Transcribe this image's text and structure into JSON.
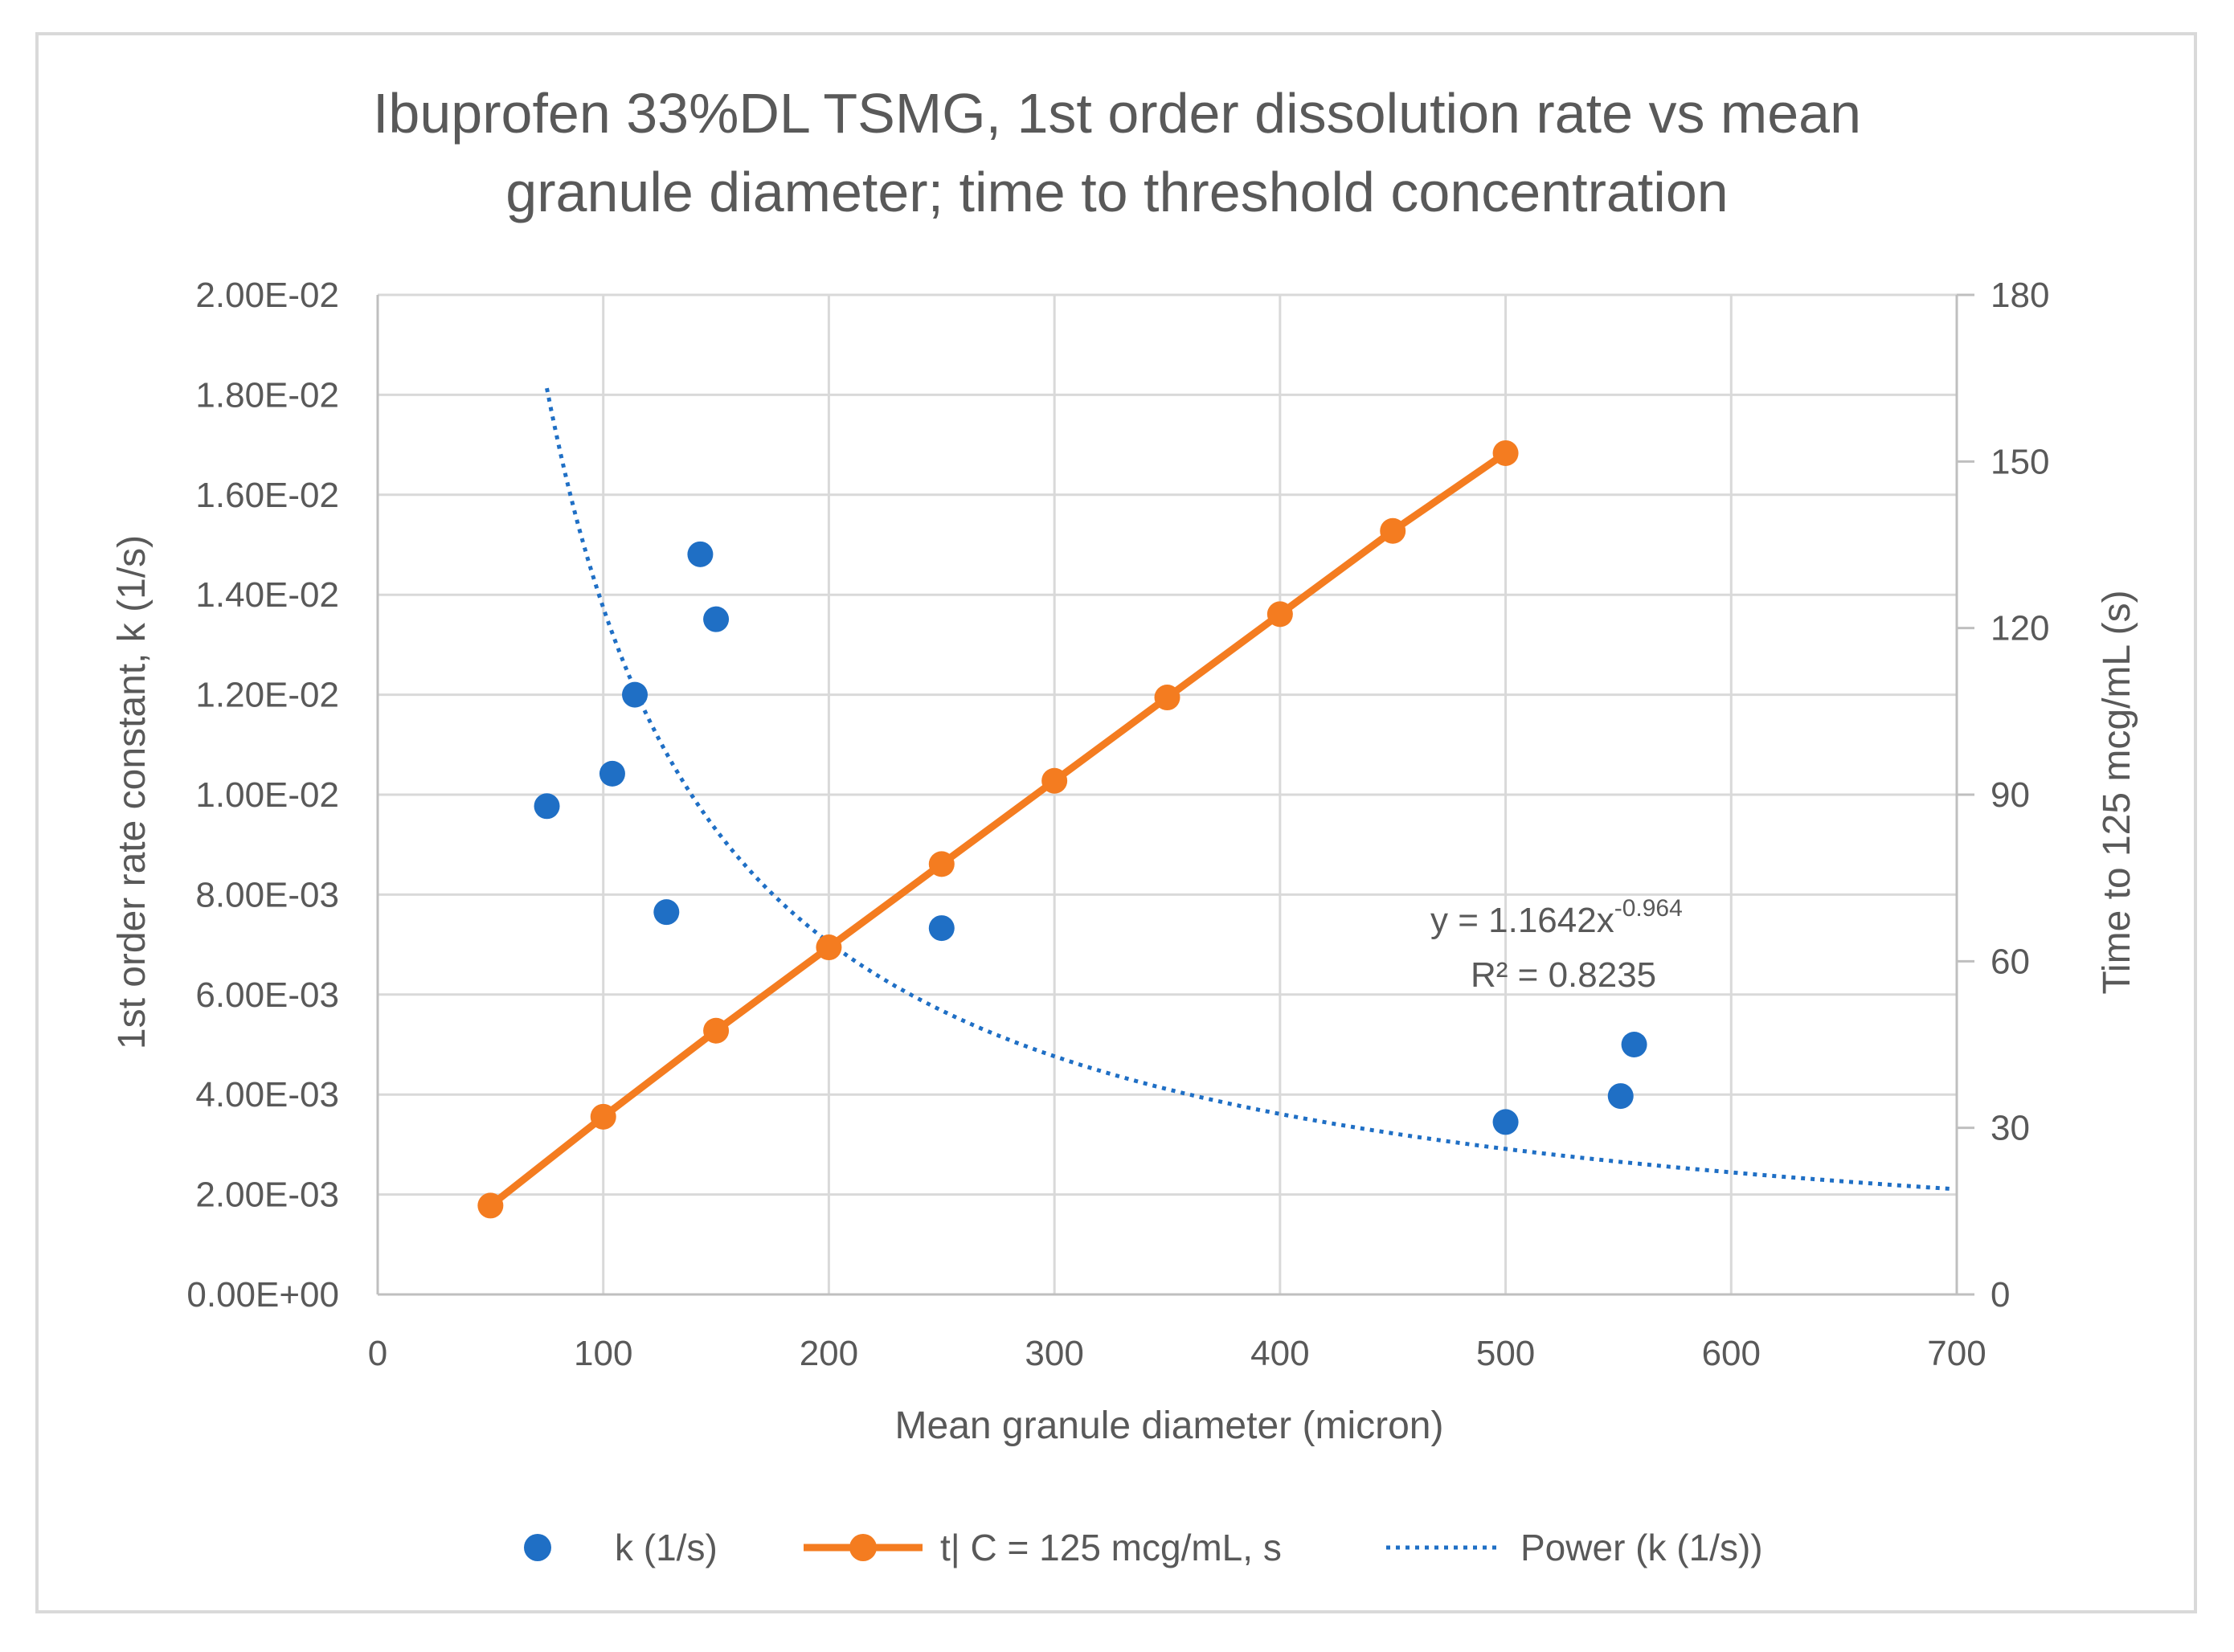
{
  "chart_data": {
    "type": "scatter",
    "title": "Ibuprofen 33%DL TSMG, 1st order dissolution rate vs mean granule diameter; time to threshold concentration",
    "title_lines": [
      "Ibuprofen 33%DL TSMG, 1st order dissolution rate vs mean",
      "granule diameter; time to threshold concentration"
    ],
    "xlabel": "Mean granule diameter (micron)",
    "ylabel": "1st order rate constant, k (1/s)",
    "y2label": "Time to 125 mcg/mL (s)",
    "xlim": [
      0,
      700
    ],
    "ylim": [
      0,
      0.02
    ],
    "y2lim": [
      0,
      180
    ],
    "x_ticks": [
      0,
      100,
      200,
      300,
      400,
      500,
      600,
      700
    ],
    "x_tick_labels": [
      "0",
      "100",
      "200",
      "300",
      "400",
      "500",
      "600",
      "700"
    ],
    "y_ticks": [
      0,
      0.002,
      0.004,
      0.006,
      0.008,
      0.01,
      0.012,
      0.014,
      0.016,
      0.018,
      0.02
    ],
    "y_tick_labels": [
      "0.00E+00",
      "2.00E-03",
      "4.00E-03",
      "6.00E-03",
      "8.00E-03",
      "1.00E-02",
      "1.20E-02",
      "1.40E-02",
      "1.60E-02",
      "1.80E-02",
      "2.00E-02"
    ],
    "y2_ticks": [
      0,
      30,
      60,
      90,
      120,
      150,
      180
    ],
    "y2_tick_labels": [
      "0",
      "30",
      "60",
      "90",
      "120",
      "150",
      "180"
    ],
    "grid": true,
    "legend_position": "bottom",
    "series": [
      {
        "name": "k (1/s)",
        "kind": "scatter",
        "axis": "left",
        "color": "#1f6fc5",
        "x": [
          75,
          104,
          114,
          128,
          143,
          150,
          250,
          500,
          551,
          557
        ],
        "y": [
          0.00977,
          0.01042,
          0.012,
          0.00765,
          0.01481,
          0.01351,
          0.00733,
          0.00345,
          0.00397,
          0.005
        ]
      },
      {
        "name": "t| C = 125 mcg/mL, s",
        "kind": "line-marker",
        "axis": "right",
        "color": "#f47c20",
        "x": [
          50,
          100,
          150,
          200,
          250,
          300,
          350,
          400,
          450,
          500
        ],
        "y": [
          16,
          32,
          47.5,
          62.5,
          77.5,
          92.5,
          107.5,
          122.5,
          137.5,
          151.5
        ]
      },
      {
        "name": "Power (k (1/s))",
        "kind": "trendline",
        "axis": "left",
        "color": "#1f6fc5",
        "fit": {
          "type": "power",
          "a": 1.1642,
          "b": -0.964,
          "x_from": 75,
          "x_to": 700
        }
      }
    ],
    "annotations": {
      "equation_base": "y = 1.1642x",
      "equation_exponent": "-0.964",
      "r_squared": "R² = 0.8235"
    }
  }
}
